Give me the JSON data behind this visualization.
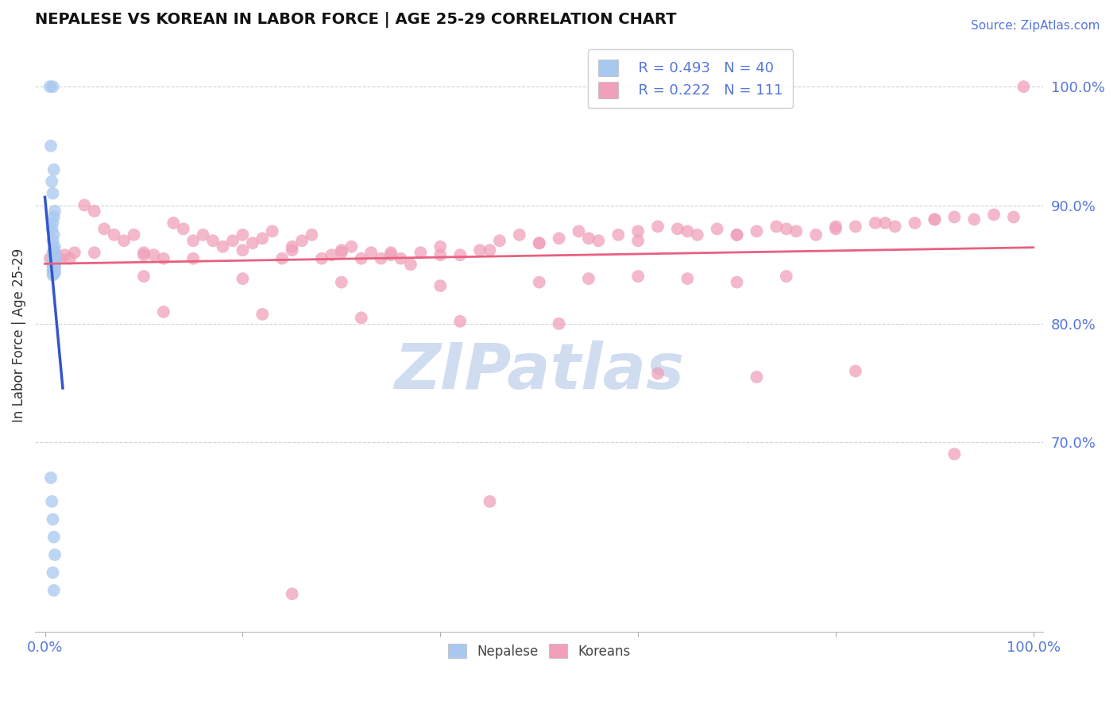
{
  "title": "NEPALESE VS KOREAN IN LABOR FORCE | AGE 25-29 CORRELATION CHART",
  "source": "Source: ZipAtlas.com",
  "ylabel": "In Labor Force | Age 25-29",
  "xlim": [
    -0.01,
    1.01
  ],
  "ylim": [
    0.54,
    1.04
  ],
  "yticks": [
    0.7,
    0.8,
    0.9,
    1.0
  ],
  "ytick_labels": [
    "70.0%",
    "80.0%",
    "90.0%",
    "100.0%"
  ],
  "xticks": [
    0.0,
    0.2,
    0.4,
    0.6,
    0.8,
    1.0
  ],
  "xtick_labels": [
    "0.0%",
    "",
    "",
    "",
    "",
    "100.0%"
  ],
  "legend_r1": "R = 0.493",
  "legend_n1": "N = 40",
  "legend_r2": "R = 0.222",
  "legend_n2": "N = 111",
  "blue_color": "#A8C8F0",
  "pink_color": "#F0A0B8",
  "blue_line_color": "#3355CC",
  "pink_line_color": "#E86080",
  "watermark_color": "#D0DCF0",
  "background_color": "#ffffff",
  "grid_color": "#C8C8C8",
  "title_color": "#111111",
  "tick_color": "#5577DD",
  "nepalese_x": [
    0.005,
    0.008,
    0.006,
    0.009,
    0.007,
    0.008,
    0.01,
    0.009,
    0.008,
    0.007,
    0.009,
    0.008,
    0.01,
    0.009,
    0.008,
    0.01,
    0.009,
    0.008,
    0.01,
    0.009,
    0.008,
    0.01,
    0.009,
    0.008,
    0.01,
    0.009,
    0.008,
    0.01,
    0.009,
    0.008,
    0.01,
    0.009,
    0.008,
    0.006,
    0.007,
    0.008,
    0.009,
    0.01,
    0.008,
    0.009
  ],
  "nepalese_y": [
    1.0,
    1.0,
    0.95,
    0.93,
    0.92,
    0.91,
    0.895,
    0.89,
    0.885,
    0.88,
    0.875,
    0.87,
    0.865,
    0.862,
    0.86,
    0.858,
    0.857,
    0.856,
    0.855,
    0.854,
    0.853,
    0.852,
    0.851,
    0.85,
    0.849,
    0.848,
    0.847,
    0.846,
    0.845,
    0.844,
    0.843,
    0.842,
    0.841,
    0.67,
    0.65,
    0.635,
    0.62,
    0.605,
    0.59,
    0.575
  ],
  "korean_x": [
    0.005,
    0.01,
    0.015,
    0.02,
    0.025,
    0.03,
    0.04,
    0.05,
    0.06,
    0.07,
    0.08,
    0.09,
    0.1,
    0.11,
    0.12,
    0.13,
    0.14,
    0.15,
    0.16,
    0.17,
    0.18,
    0.19,
    0.2,
    0.21,
    0.22,
    0.23,
    0.24,
    0.25,
    0.26,
    0.27,
    0.28,
    0.29,
    0.3,
    0.31,
    0.32,
    0.33,
    0.34,
    0.35,
    0.36,
    0.37,
    0.38,
    0.4,
    0.42,
    0.44,
    0.46,
    0.48,
    0.5,
    0.52,
    0.54,
    0.56,
    0.58,
    0.6,
    0.62,
    0.64,
    0.66,
    0.68,
    0.7,
    0.72,
    0.74,
    0.76,
    0.78,
    0.8,
    0.82,
    0.84,
    0.86,
    0.88,
    0.9,
    0.92,
    0.94,
    0.96,
    0.98,
    0.99,
    0.05,
    0.1,
    0.15,
    0.2,
    0.25,
    0.3,
    0.35,
    0.4,
    0.45,
    0.5,
    0.55,
    0.6,
    0.65,
    0.7,
    0.75,
    0.8,
    0.85,
    0.9,
    0.1,
    0.2,
    0.3,
    0.4,
    0.5,
    0.55,
    0.6,
    0.65,
    0.7,
    0.75,
    0.12,
    0.22,
    0.32,
    0.42,
    0.52,
    0.62,
    0.72,
    0.82,
    0.92,
    0.25,
    0.45
  ],
  "korean_y": [
    0.855,
    0.86,
    0.855,
    0.858,
    0.855,
    0.86,
    0.9,
    0.895,
    0.88,
    0.875,
    0.87,
    0.875,
    0.86,
    0.858,
    0.855,
    0.885,
    0.88,
    0.87,
    0.875,
    0.87,
    0.865,
    0.87,
    0.875,
    0.868,
    0.872,
    0.878,
    0.855,
    0.862,
    0.87,
    0.875,
    0.855,
    0.858,
    0.86,
    0.865,
    0.855,
    0.86,
    0.855,
    0.858,
    0.855,
    0.85,
    0.86,
    0.865,
    0.858,
    0.862,
    0.87,
    0.875,
    0.868,
    0.872,
    0.878,
    0.87,
    0.875,
    0.878,
    0.882,
    0.88,
    0.875,
    0.88,
    0.875,
    0.878,
    0.882,
    0.878,
    0.875,
    0.88,
    0.882,
    0.885,
    0.882,
    0.885,
    0.888,
    0.89,
    0.888,
    0.892,
    0.89,
    1.0,
    0.86,
    0.858,
    0.855,
    0.862,
    0.865,
    0.862,
    0.86,
    0.858,
    0.862,
    0.868,
    0.872,
    0.87,
    0.878,
    0.875,
    0.88,
    0.882,
    0.885,
    0.888,
    0.84,
    0.838,
    0.835,
    0.832,
    0.835,
    0.838,
    0.84,
    0.838,
    0.835,
    0.84,
    0.81,
    0.808,
    0.805,
    0.802,
    0.8,
    0.758,
    0.755,
    0.76,
    0.69,
    0.572,
    0.65
  ]
}
